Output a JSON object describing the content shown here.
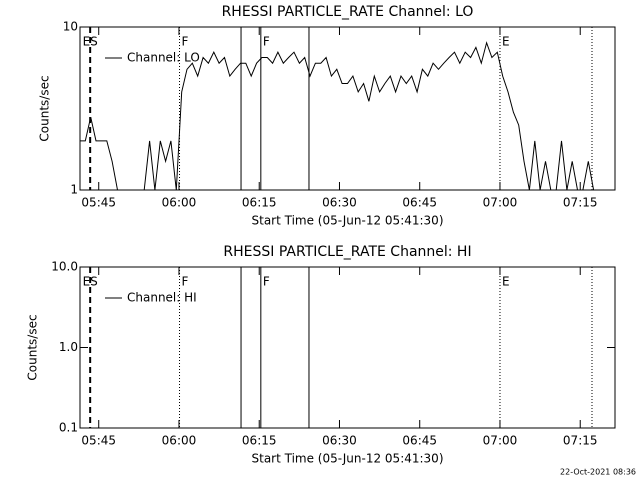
{
  "chart_data": [
    {
      "type": "line",
      "title": "RHESSI PARTICLE_RATE Channel: LO",
      "x_label": "Start Time (05-Jun-12 05:41:30)",
      "y_label": "Counts/sec",
      "log_y": true,
      "ylim": [
        1,
        10
      ],
      "yticks": [
        1,
        10
      ],
      "xlim": [
        0,
        100
      ],
      "xticks": [
        {
          "value": 3.5,
          "label": "05:45"
        },
        {
          "value": 18.5,
          "label": "06:00"
        },
        {
          "value": 33.5,
          "label": "06:15"
        },
        {
          "value": 48.5,
          "label": "06:30"
        },
        {
          "value": 63.5,
          "label": "06:45"
        },
        {
          "value": 78.5,
          "label": "07:00"
        },
        {
          "value": 93.5,
          "label": "07:15"
        }
      ],
      "legend": "upper left",
      "markers": [
        {
          "x": 1.9,
          "style": "dashed",
          "label": "ES"
        },
        {
          "x": 18.6,
          "style": "dotted",
          "label": "F"
        },
        {
          "x": 30.1,
          "style": "solid"
        },
        {
          "x": 33.8,
          "style": "solid",
          "label": "F"
        },
        {
          "x": 42.8,
          "style": "solid"
        },
        {
          "x": 78.5,
          "style": "dotted",
          "label": "E"
        },
        {
          "x": 95.7,
          "style": "dotted"
        }
      ],
      "x": [
        0,
        1,
        2,
        3,
        4,
        5,
        6,
        7,
        8,
        9,
        10,
        11,
        12,
        13,
        14,
        15,
        16,
        17,
        18,
        19,
        20,
        21,
        22,
        23,
        24,
        25,
        26,
        27,
        28,
        29,
        30,
        31,
        32,
        33,
        34,
        35,
        36,
        37,
        38,
        39,
        40,
        41,
        42,
        43,
        44,
        45,
        46,
        47,
        48,
        49,
        50,
        51,
        52,
        53,
        54,
        55,
        56,
        57,
        58,
        59,
        60,
        61,
        62,
        63,
        64,
        65,
        66,
        67,
        68,
        69,
        70,
        71,
        72,
        73,
        74,
        75,
        76,
        77,
        78,
        79,
        80,
        81,
        82,
        83,
        84,
        85,
        86,
        87,
        88,
        89,
        90,
        91,
        92,
        93,
        94,
        95,
        96,
        97,
        98,
        99
      ],
      "series": [
        {
          "name": "Channel: LO",
          "color": "#000000",
          "values": [
            2,
            2,
            2.8,
            2,
            2,
            2,
            1.5,
            1,
            1,
            1,
            1,
            1,
            1,
            2,
            1,
            2,
            1.5,
            2,
            1,
            4,
            5.5,
            6,
            5,
            6.5,
            6,
            7,
            6,
            6.5,
            5,
            5.5,
            6,
            6,
            5,
            6,
            6.5,
            6.5,
            6,
            7,
            6,
            6.5,
            7,
            6,
            6.5,
            5,
            6,
            6,
            6.5,
            5,
            5.5,
            4.5,
            4.5,
            5,
            4,
            4.5,
            3.5,
            5,
            4,
            4.5,
            5,
            4,
            5,
            4.5,
            5,
            4,
            5.5,
            5,
            6,
            5.5,
            6,
            6.5,
            7,
            6,
            7,
            6.5,
            7.5,
            6,
            8,
            6.5,
            7,
            5,
            4,
            3,
            2.5,
            1.5,
            1,
            2,
            1,
            1.5,
            1,
            1,
            2,
            1,
            1.5,
            1,
            1,
            1.5,
            1,
            1,
            1,
            1
          ]
        }
      ]
    },
    {
      "type": "line",
      "title": "RHESSI PARTICLE_RATE Channel: HI",
      "x_label": "Start Time (05-Jun-12 05:41:30)",
      "y_label": "Counts/sec",
      "log_y": true,
      "ylim": [
        0.1,
        10
      ],
      "yticks": [
        0.1,
        {
          "value": 1,
          "label": "1.0"
        },
        {
          "value": 10,
          "label": "10.0"
        }
      ],
      "xlim": [
        0,
        100
      ],
      "xticks": [
        {
          "value": 3.5,
          "label": "05:45"
        },
        {
          "value": 18.5,
          "label": "06:00"
        },
        {
          "value": 33.5,
          "label": "06:15"
        },
        {
          "value": 48.5,
          "label": "06:30"
        },
        {
          "value": 63.5,
          "label": "06:45"
        },
        {
          "value": 78.5,
          "label": "07:00"
        },
        {
          "value": 93.5,
          "label": "07:15"
        }
      ],
      "legend": "upper left",
      "markers": [
        {
          "x": 1.9,
          "style": "dashed",
          "label": "ES"
        },
        {
          "x": 18.6,
          "style": "dotted",
          "label": "F"
        },
        {
          "x": 30.1,
          "style": "solid"
        },
        {
          "x": 33.8,
          "style": "solid",
          "label": "F"
        },
        {
          "x": 42.8,
          "style": "solid"
        },
        {
          "x": 78.5,
          "style": "dotted",
          "label": "E"
        },
        {
          "x": 95.7,
          "style": "dotted"
        }
      ],
      "series": [
        {
          "name": "Channel: HI",
          "color": "#000000"
        }
      ]
    }
  ],
  "footer": "22-Oct-2021 08:36"
}
